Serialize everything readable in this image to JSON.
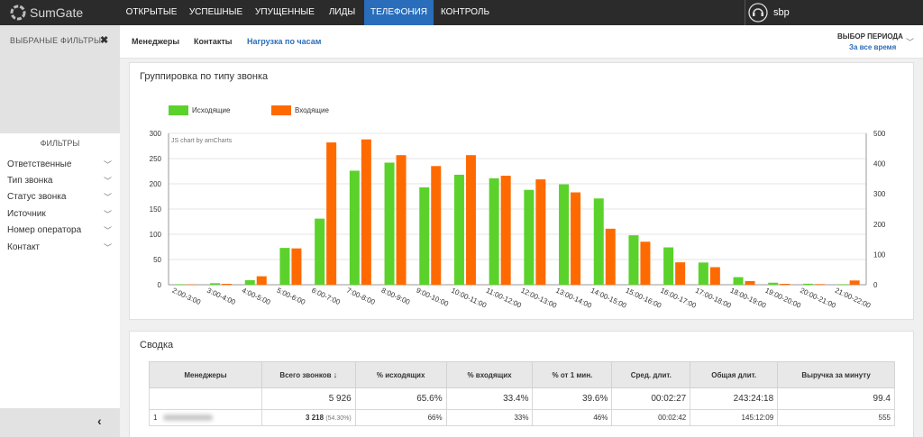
{
  "app": {
    "name": "SumGate"
  },
  "nav": {
    "items": [
      "ОТКРЫТЫЕ",
      "УСПЕШНЫЕ",
      "УПУЩЕННЫЕ",
      "ЛИДЫ",
      "ТЕЛЕФОНИЯ",
      "КОНТРОЛЬ"
    ],
    "active": "ТЕЛЕФОНИЯ"
  },
  "user": {
    "name": "sbp"
  },
  "sidebar": {
    "selected_filters_title": "ВЫБРАНЫЕ ФИЛЬТРЫ",
    "filters_title": "ФИЛЬТРЫ",
    "filters": [
      "Ответственные",
      "Тип звонка",
      "Статус звонка",
      "Источник",
      "Номер оператора",
      "Контакт"
    ]
  },
  "subnav": {
    "tabs": [
      "Менеджеры",
      "Контакты",
      "Нагрузка по часам"
    ],
    "active": "Нагрузка по часам",
    "period_label": "ВЫБОР ПЕРИОДА",
    "period_value": "За все время"
  },
  "chart_panel": {
    "title": "Группировка по типу звонка"
  },
  "chart_data": {
    "type": "bar",
    "watermark": "JS chart by amCharts",
    "categories": [
      "2:00-3:00",
      "3:00-4:00",
      "4:00-5:00",
      "5:00-6:00",
      "6:00-7:00",
      "7:00-8:00",
      "8:00-9:00",
      "9:00-10:00",
      "10:00-11:00",
      "11:00-12:00",
      "12:00-13:00",
      "13:00-14:00",
      "14:00-15:00",
      "15:00-16:00",
      "16:00-17:00",
      "17:00-18:00",
      "18:00-19:00",
      "19:00-20:00",
      "20:00-21:00",
      "21:00-22:00"
    ],
    "series": [
      {
        "name": "Исходящие",
        "color": "#5bd22b",
        "axis": "left",
        "values": [
          1,
          3,
          9,
          73,
          131,
          226,
          242,
          193,
          218,
          211,
          188,
          199,
          171,
          98,
          74,
          44,
          15,
          4,
          2,
          1
        ]
      },
      {
        "name": "Входящие",
        "color": "#ff6a00",
        "axis": "right",
        "values": [
          1,
          3,
          28,
          120,
          470,
          480,
          428,
          392,
          428,
          360,
          348,
          305,
          185,
          142,
          74,
          58,
          12,
          3,
          2,
          14
        ]
      }
    ],
    "y_left": {
      "min": 0,
      "max": 300,
      "ticks": [
        0,
        50,
        100,
        150,
        200,
        250,
        300
      ]
    },
    "y_right": {
      "min": 0,
      "max": 500,
      "ticks": [
        0,
        100,
        200,
        300,
        400,
        500
      ]
    },
    "legend": "top-left",
    "grid": true
  },
  "summary": {
    "title": "Сводка",
    "headers": [
      "Менеджеры",
      "Всего звонков",
      "% исходящих",
      "% входящих",
      "% от 1 мин.",
      "Сред. длит.",
      "Общая длит.",
      "Выручка за минуту"
    ],
    "total": [
      "",
      "5 926",
      "65.6%",
      "33.4%",
      "39.6%",
      "00:02:27",
      "243:24:18",
      "99.4"
    ],
    "rows": [
      {
        "n": "1",
        "calls": "3 218",
        "calls_pct": "(54.30%)",
        "out": "66%",
        "in": "33%",
        "min1": "46%",
        "avg": "00:02:42",
        "total": "145:12:09",
        "rev": "555"
      }
    ]
  },
  "colors": {
    "nav_active": "#2a6ebb",
    "outgoing": "#5bd22b",
    "incoming": "#ff6a00"
  }
}
